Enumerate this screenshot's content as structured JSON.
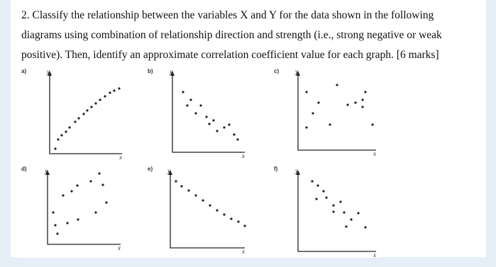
{
  "question": {
    "lines": [
      "2. Classify the relationship between the variables X and Y for the data shown in the following",
      "diagrams using combination of relationship direction and strength (i.e., strong negative or weak",
      "positive). Then, identify an approximate correlation coefficient value for each graph. [6 marks]"
    ]
  },
  "graphs": [
    {
      "label": "a)",
      "y_axis": "y",
      "x_axis": "x"
    },
    {
      "label": "b)",
      "y_axis": "y",
      "x_axis": "x"
    },
    {
      "label": "c)",
      "y_axis": "y",
      "x_axis": "x"
    },
    {
      "label": "d)",
      "y_axis": "y",
      "x_axis": "x"
    },
    {
      "label": "e)",
      "y_axis": "y",
      "x_axis": "x"
    },
    {
      "label": "f)",
      "y_axis": "y",
      "x_axis": "x"
    }
  ]
}
